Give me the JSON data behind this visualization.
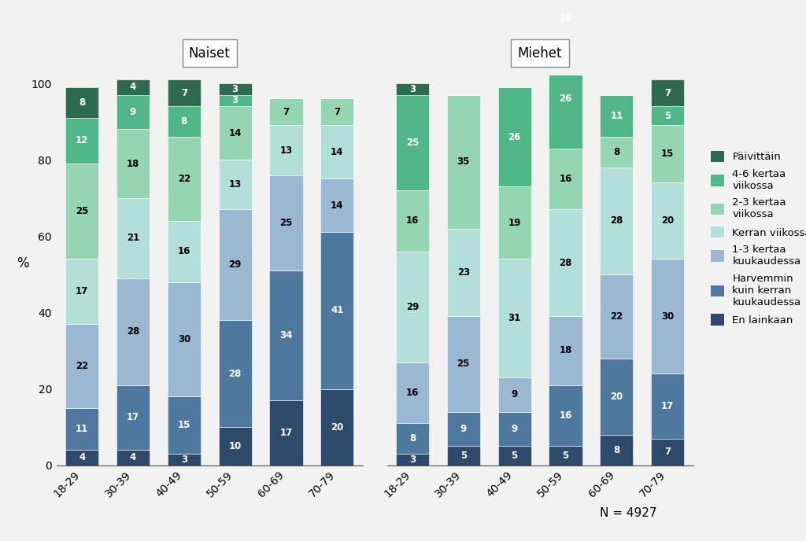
{
  "categories": [
    "18-29",
    "30-39",
    "40-49",
    "50-59",
    "60-69",
    "70-79"
  ],
  "colors_bottom_to_top": [
    "#2d4a6b",
    "#4e789e",
    "#9ab8d1",
    "#b2e0d8",
    "#95d5b2",
    "#52b788",
    "#2d6a4f"
  ],
  "legend_colors": [
    "#2d6a4f",
    "#52b788",
    "#95d5b2",
    "#b2e0d8",
    "#9ab8d1",
    "#4e789e",
    "#2d4a6b"
  ],
  "legend_labels": [
    "Päivittäin",
    "4-6 kertaa\nviikossa",
    "2-3 kertaa\nviikossa",
    "Kerran viikossa",
    "1-3 kertaa\nkuukaudessa",
    "Harvemmin\nkuin kerran\nkuukaudessa",
    "En lainkaan"
  ],
  "naiset": {
    "18-29": [
      4,
      11,
      22,
      17,
      25,
      12,
      8
    ],
    "30-39": [
      4,
      17,
      28,
      21,
      18,
      9,
      4
    ],
    "40-49": [
      3,
      15,
      30,
      16,
      22,
      8,
      7
    ],
    "50-59": [
      10,
      28,
      29,
      13,
      14,
      3,
      3
    ],
    "60-69": [
      17,
      34,
      25,
      13,
      7,
      0,
      0
    ],
    "70-79": [
      20,
      41,
      14,
      14,
      7,
      0,
      0
    ]
  },
  "miehet": {
    "18-29": [
      3,
      8,
      16,
      29,
      16,
      25,
      3
    ],
    "30-39": [
      5,
      9,
      25,
      23,
      35,
      0,
      0
    ],
    "40-49": [
      5,
      9,
      9,
      31,
      19,
      26,
      0
    ],
    "50-59": [
      5,
      16,
      18,
      28,
      16,
      26,
      16
    ],
    "60-69": [
      8,
      20,
      22,
      28,
      8,
      11,
      0
    ],
    "70-79": [
      7,
      17,
      30,
      20,
      15,
      5,
      7
    ]
  },
  "title_naiset": "Naiset",
  "title_miehet": "Miehet",
  "ylabel": "%",
  "note": "N = 4927",
  "bg_color": "#f2f2f2"
}
